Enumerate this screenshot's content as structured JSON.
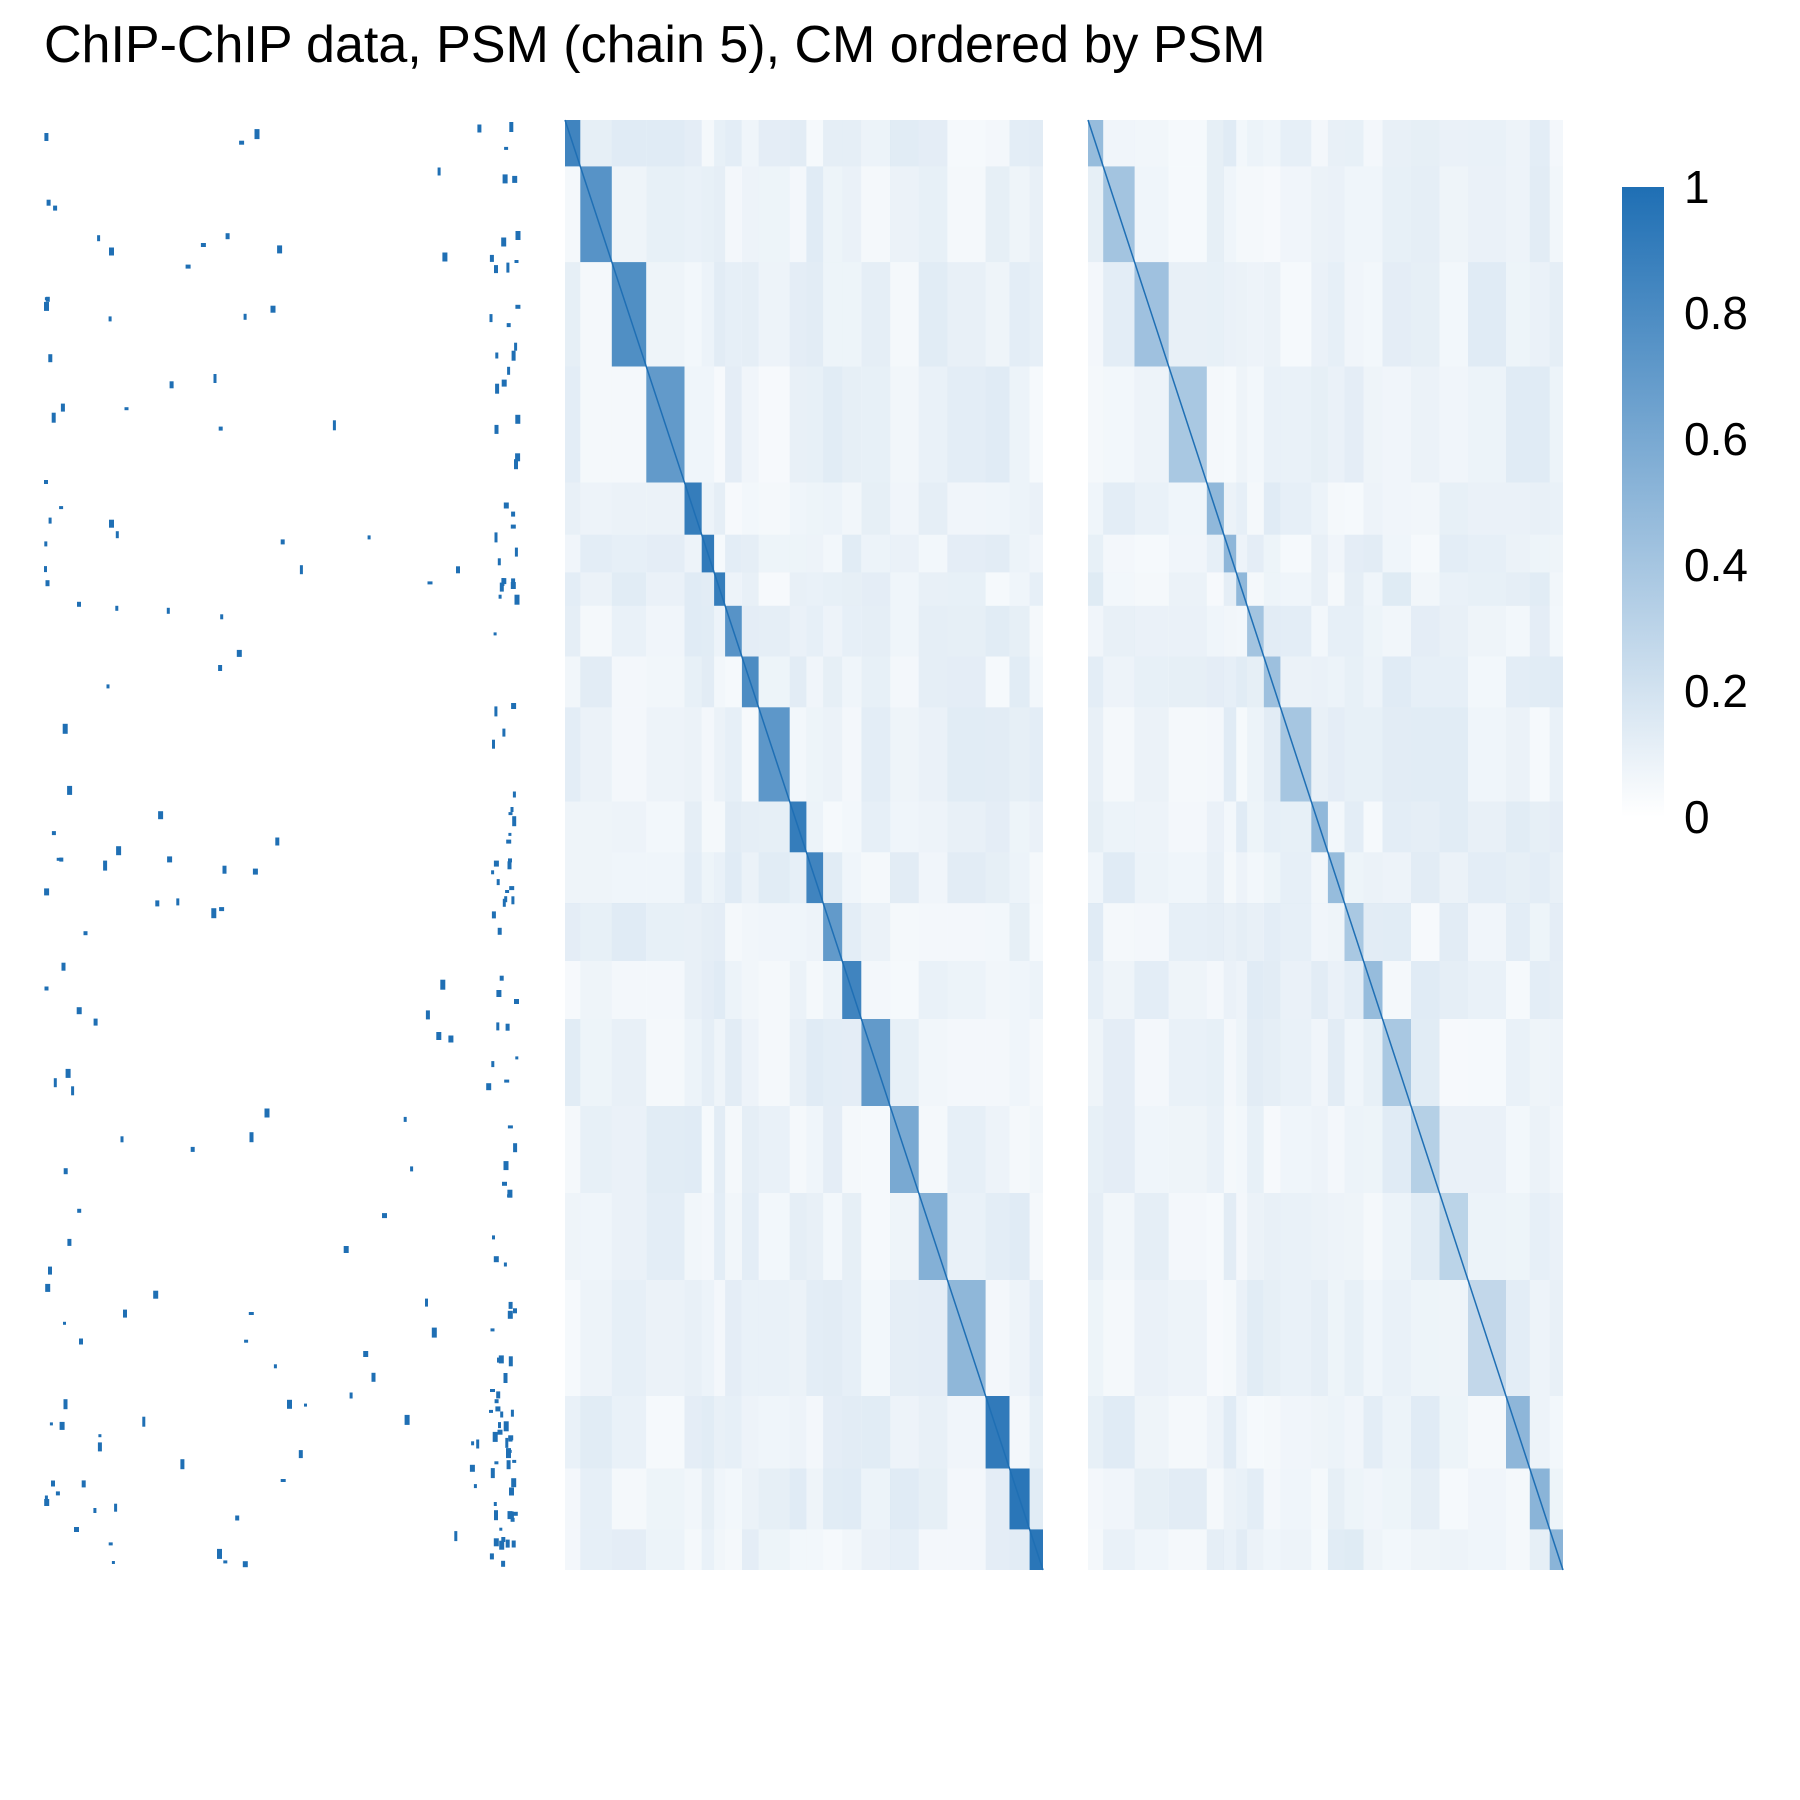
{
  "chart_data": {
    "type": "heatmap",
    "title": "ChIP-ChIP data, PSM (chain 5), CM ordered by PSM",
    "panels": [
      {
        "name": "",
        "kind": "binary",
        "description_role": "ChIP-ChIP data panel 1"
      },
      {
        "name": "",
        "kind": "binary",
        "description_role": "ChIP-ChIP data panel 2"
      },
      {
        "name": "",
        "kind": "similarity",
        "description_role": "PSM"
      },
      {
        "name": "",
        "kind": "similarity",
        "description_role": "CM ordered by PSM"
      }
    ],
    "psm_blocks": [
      {
        "start": 0.0,
        "end": 0.032,
        "value": 0.85
      },
      {
        "start": 0.032,
        "end": 0.098,
        "value": 0.75
      },
      {
        "start": 0.098,
        "end": 0.17,
        "value": 0.78
      },
      {
        "start": 0.17,
        "end": 0.25,
        "value": 0.7
      },
      {
        "start": 0.25,
        "end": 0.286,
        "value": 0.9
      },
      {
        "start": 0.286,
        "end": 0.312,
        "value": 0.92
      },
      {
        "start": 0.312,
        "end": 0.335,
        "value": 0.9
      },
      {
        "start": 0.335,
        "end": 0.37,
        "value": 0.75
      },
      {
        "start": 0.37,
        "end": 0.405,
        "value": 0.8
      },
      {
        "start": 0.405,
        "end": 0.47,
        "value": 0.72
      },
      {
        "start": 0.47,
        "end": 0.505,
        "value": 0.9
      },
      {
        "start": 0.505,
        "end": 0.54,
        "value": 0.85
      },
      {
        "start": 0.54,
        "end": 0.58,
        "value": 0.7
      },
      {
        "start": 0.58,
        "end": 0.62,
        "value": 0.85
      },
      {
        "start": 0.62,
        "end": 0.68,
        "value": 0.7
      },
      {
        "start": 0.68,
        "end": 0.74,
        "value": 0.6
      },
      {
        "start": 0.74,
        "end": 0.8,
        "value": 0.55
      },
      {
        "start": 0.8,
        "end": 0.88,
        "value": 0.5
      },
      {
        "start": 0.88,
        "end": 0.93,
        "value": 0.92
      },
      {
        "start": 0.93,
        "end": 0.972,
        "value": 0.95
      },
      {
        "start": 0.972,
        "end": 1.0,
        "value": 0.95
      }
    ],
    "colorbar": {
      "range": [
        0,
        1
      ],
      "ticks": [
        "1",
        "0.8",
        "0.6",
        "0.4",
        "0.2",
        "0"
      ],
      "tick_values": [
        1,
        0.8,
        0.6,
        0.4,
        0.2,
        0
      ],
      "low_color": "#ffffff",
      "high_color": "#1f6fb4"
    },
    "legend_position": "right",
    "grid": false
  },
  "colors": {
    "accent": "#1f6fb4",
    "background": "#ffffff"
  }
}
